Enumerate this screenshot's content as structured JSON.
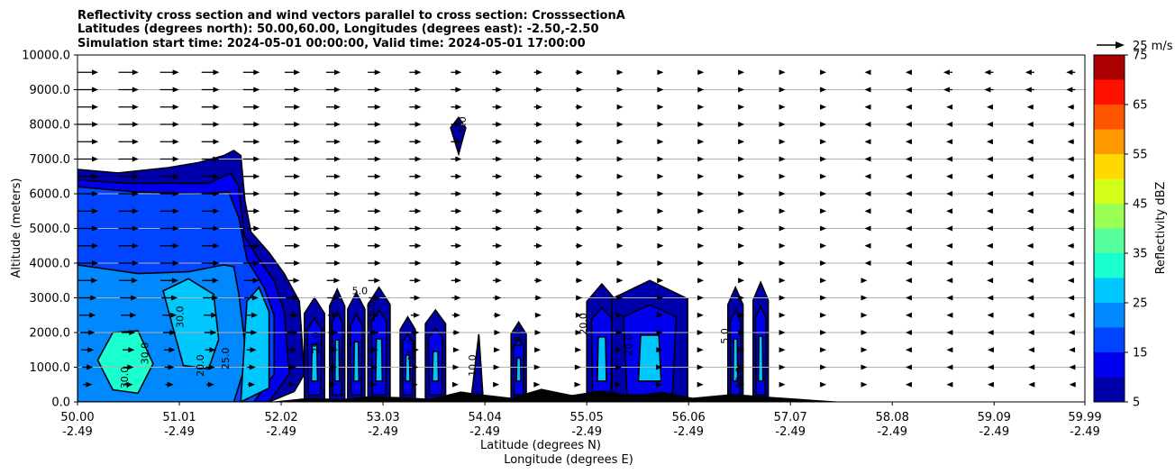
{
  "chart_data": {
    "type": "contour",
    "title_lines": [
      "Reflectivity cross section and wind vectors parallel to cross section: CrosssectionA",
      "Latitudes (degrees north): 50.00,60.00, Longitudes (degrees east): -2.50,-2.50",
      "Simulation start time: 2024-05-01 00:00:00, Valid time: 2024-05-01 17:00:00"
    ],
    "xlabel_1": "Latitude (degrees N)",
    "xlabel_2": "Longitude (degrees E)",
    "ylabel": "Altitude (meters)",
    "x_ticks_lat": [
      "50.00",
      "51.01",
      "52.02",
      "53.03",
      "54.04",
      "55.05",
      "56.06",
      "57.07",
      "58.08",
      "59.09",
      "59.99"
    ],
    "x_ticks_lon": [
      "-2.49",
      "-2.49",
      "-2.49",
      "-2.49",
      "-2.49",
      "-2.49",
      "-2.49",
      "-2.49",
      "-2.49",
      "-2.49",
      "-2.49"
    ],
    "xlim": [
      50.0,
      59.99
    ],
    "ylim": [
      0,
      10000
    ],
    "y_ticks": [
      "0.0",
      "1000.0",
      "2000.0",
      "3000.0",
      "4000.0",
      "5000.0",
      "6000.0",
      "7000.0",
      "8000.0",
      "9000.0",
      "10000.0"
    ],
    "grid": "horizontal",
    "colorbar": {
      "label": "Reflectivity dBZ",
      "ticks": [
        "5",
        "15",
        "25",
        "35",
        "45",
        "55",
        "65",
        "75"
      ],
      "levels": [
        5,
        10,
        15,
        20,
        25,
        30,
        35,
        40,
        45,
        50,
        55,
        60,
        65,
        70,
        75
      ],
      "colors": [
        "#0000aa",
        "#0000ee",
        "#0044ff",
        "#0088ff",
        "#00c8ff",
        "#1affd0",
        "#55ff99",
        "#99ff55",
        "#d4ff1a",
        "#ffd800",
        "#ff9900",
        "#ff5500",
        "#ff1100",
        "#aa0000"
      ]
    },
    "vector_key": {
      "label": "25 m/s"
    },
    "contour_labels": [
      "5.0",
      "10.0",
      "15.0",
      "20.0",
      "25.0",
      "30.0"
    ],
    "terrain_color": "#000000"
  }
}
